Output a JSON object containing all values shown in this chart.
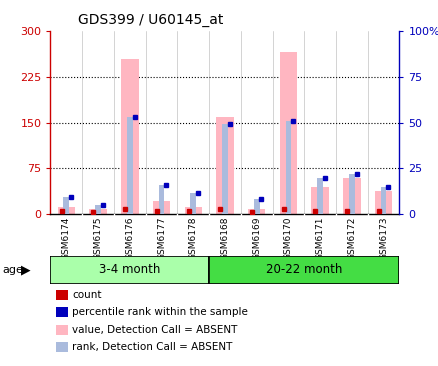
{
  "title": "GDS399 / U60145_at",
  "samples": [
    "GSM6174",
    "GSM6175",
    "GSM6176",
    "GSM6177",
    "GSM6178",
    "GSM6168",
    "GSM6169",
    "GSM6170",
    "GSM6171",
    "GSM6172",
    "GSM6173"
  ],
  "group1_size": 5,
  "group2_size": 6,
  "group1_label": "3-4 month",
  "group2_label": "20-22 month",
  "group1_color": "#AAFFAA",
  "group2_color": "#44DD44",
  "value_absent": [
    12,
    8,
    255,
    22,
    12,
    160,
    8,
    265,
    45,
    60,
    38
  ],
  "rank_absent": [
    28,
    15,
    160,
    48,
    35,
    147,
    25,
    153,
    60,
    65,
    45
  ],
  "count_values": [
    5,
    3,
    8,
    5,
    5,
    8,
    3,
    8,
    5,
    5,
    5
  ],
  "percentile_values": [
    28,
    15,
    160,
    48,
    35,
    147,
    25,
    153,
    60,
    65,
    45
  ],
  "ylim_left": [
    0,
    300
  ],
  "ylim_right": [
    0,
    100
  ],
  "yticks_left": [
    0,
    75,
    150,
    225,
    300
  ],
  "ytick_labels_left": [
    "0",
    "75",
    "150",
    "225",
    "300"
  ],
  "yticks_right": [
    0,
    25,
    50,
    75,
    100
  ],
  "ytick_labels_right": [
    "0",
    "25",
    "50",
    "75",
    "100%"
  ],
  "color_value_absent": "#FFB6C1",
  "color_rank_absent": "#AABBDD",
  "color_count": "#CC0000",
  "color_percentile": "#0000BB",
  "bg_plot": "#FFFFFF",
  "left_axis_color": "#CC0000",
  "right_axis_color": "#0000BB",
  "legend_items": [
    {
      "color": "#CC0000",
      "label": "count"
    },
    {
      "color": "#0000BB",
      "label": "percentile rank within the sample"
    },
    {
      "color": "#FFB6C1",
      "label": "value, Detection Call = ABSENT"
    },
    {
      "color": "#AABBDD",
      "label": "rank, Detection Call = ABSENT"
    }
  ]
}
